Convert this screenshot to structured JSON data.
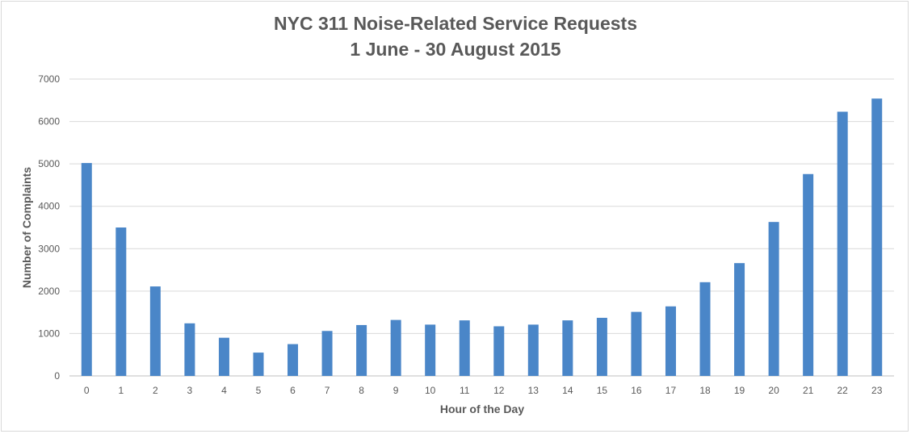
{
  "chart_data": {
    "type": "bar",
    "title": "NYC 311 Noise-Related Service Requests",
    "subtitle": "1 June - 30 August 2015",
    "xlabel": "Hour of the Day",
    "ylabel": "Number of Complaints",
    "categories": [
      "0",
      "1",
      "2",
      "3",
      "4",
      "5",
      "6",
      "7",
      "8",
      "9",
      "10",
      "11",
      "12",
      "13",
      "14",
      "15",
      "16",
      "17",
      "18",
      "19",
      "20",
      "21",
      "22",
      "23"
    ],
    "values": [
      5020,
      3500,
      2110,
      1240,
      900,
      550,
      750,
      1060,
      1200,
      1320,
      1210,
      1310,
      1170,
      1210,
      1310,
      1370,
      1510,
      1640,
      2210,
      2660,
      3630,
      4760,
      6230,
      6540
    ],
    "ylim": [
      0,
      7000
    ],
    "yticks": [
      0,
      1000,
      2000,
      3000,
      4000,
      5000,
      6000,
      7000
    ],
    "grid": true,
    "bar_color": "#4a86c8",
    "grid_color": "#d9d9d9"
  }
}
